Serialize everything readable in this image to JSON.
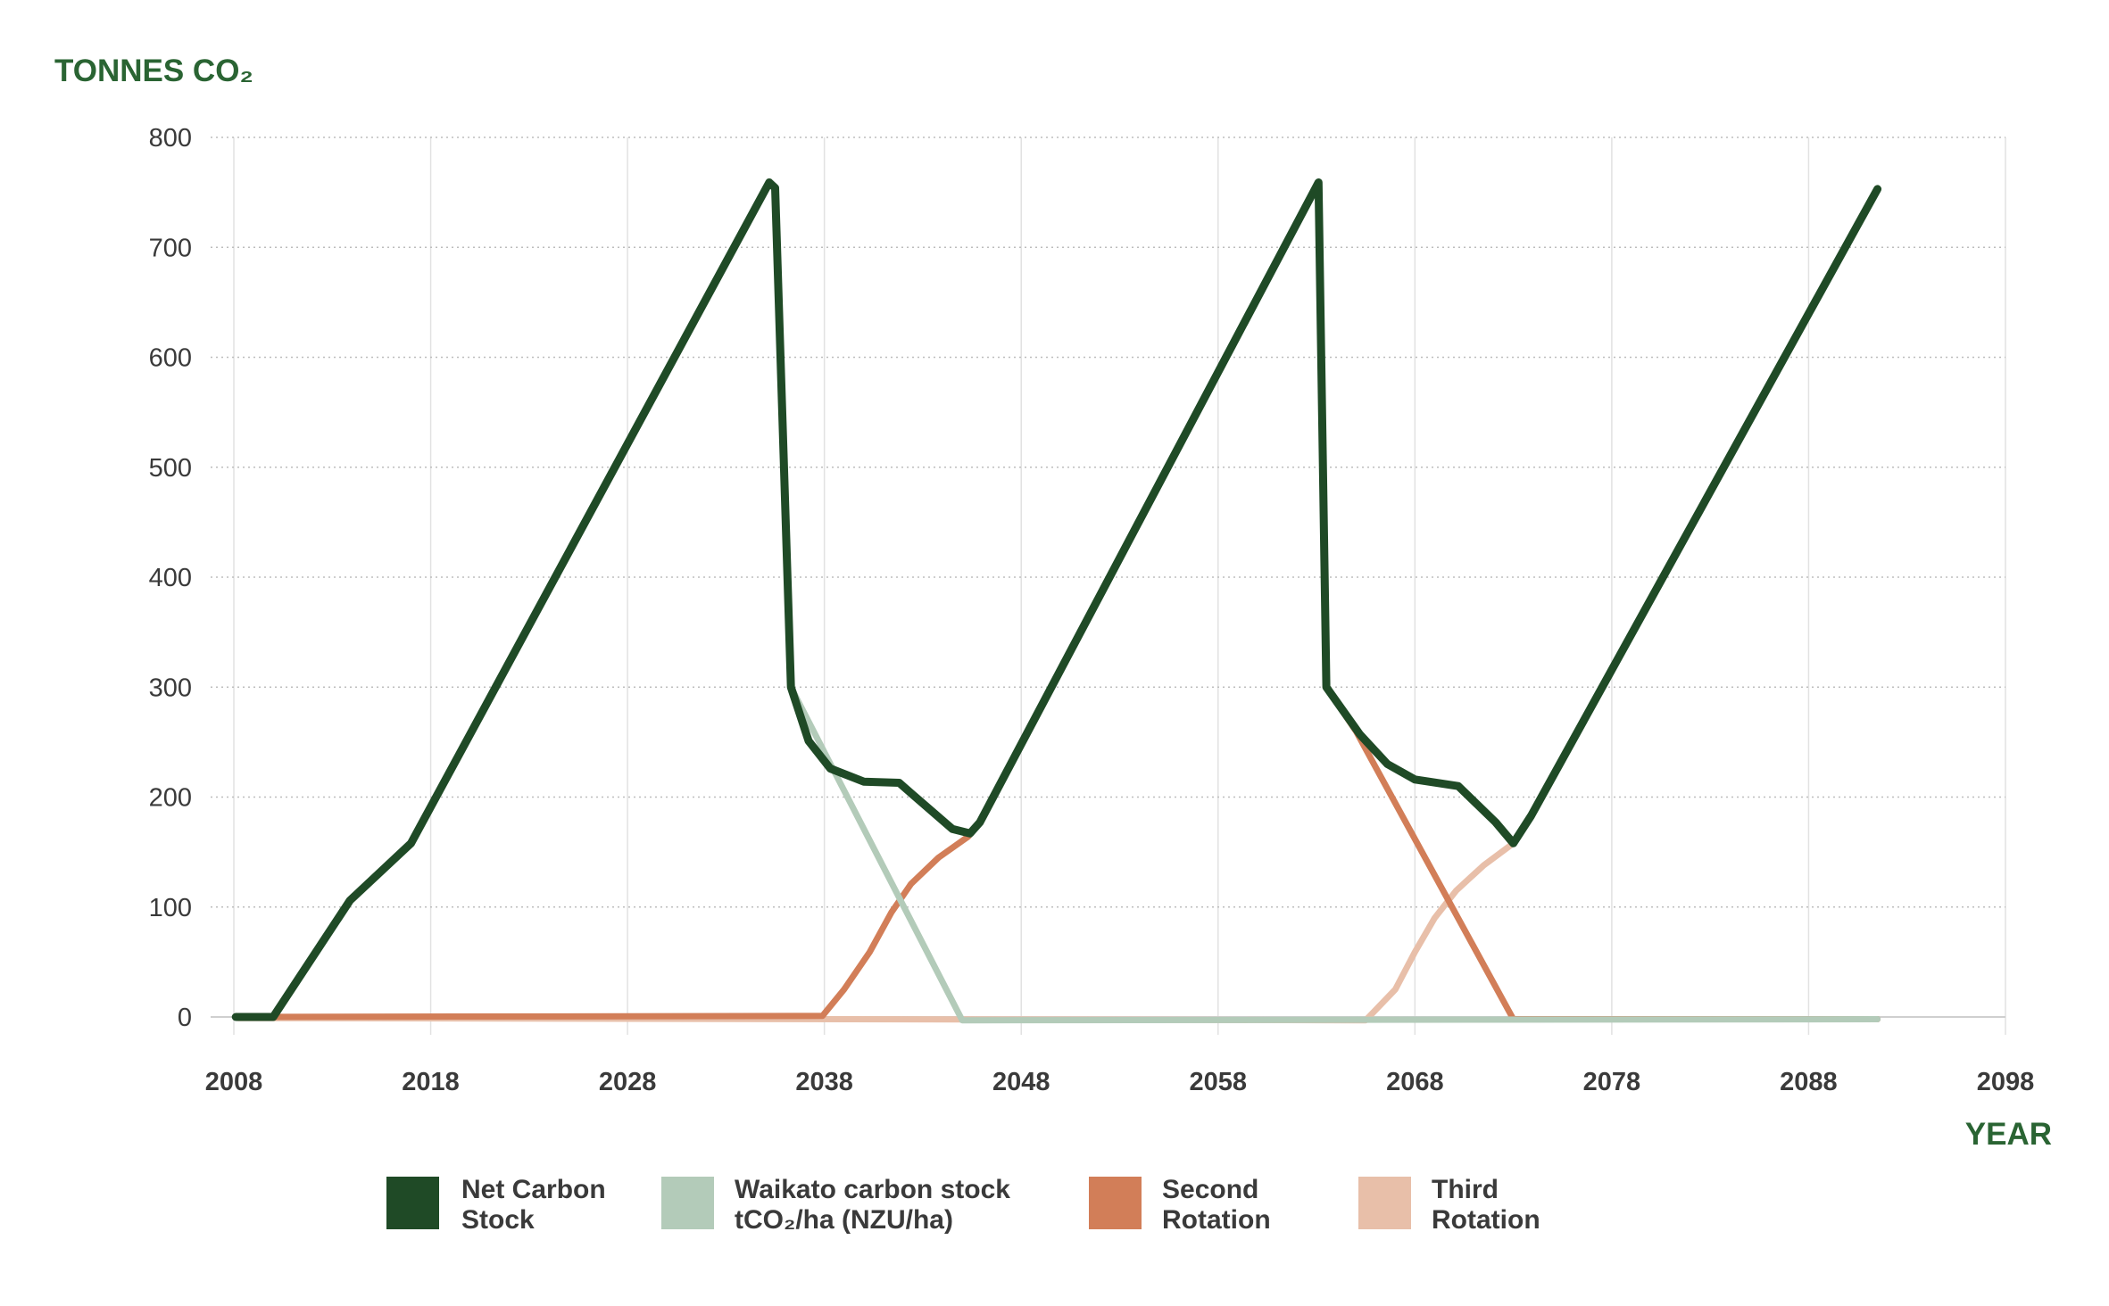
{
  "chart_data": {
    "type": "line",
    "title": "",
    "ylabel": "TONNES CO₂",
    "xlabel": "YEAR",
    "xlim": [
      2008,
      2098
    ],
    "ylim": [
      0,
      800
    ],
    "x_ticks": [
      "2008",
      "2018",
      "2028",
      "2038",
      "2048",
      "2058",
      "2068",
      "2078",
      "2088",
      "2098"
    ],
    "y_ticks": [
      "0",
      "100",
      "200",
      "300",
      "400",
      "500",
      "600",
      "700",
      "800"
    ],
    "grid": true,
    "legend_position": "bottom",
    "series": [
      {
        "name": "Third Rotation",
        "legend_lines": [
          "Third",
          "Rotation"
        ],
        "color": "#e8bfa9",
        "points": [
          [
            2008.2,
            -1
          ],
          [
            2065.5,
            -3
          ],
          [
            2067,
            25
          ],
          [
            2068,
            59
          ],
          [
            2069,
            90
          ],
          [
            2070.1,
            115
          ],
          [
            2071.5,
            138
          ],
          [
            2073,
            158
          ],
          [
            2073.9,
            183
          ],
          [
            2091.5,
            753
          ]
        ]
      },
      {
        "name": "Second Rotation",
        "legend_lines": [
          "Second",
          "Rotation"
        ],
        "color": "#d27e58",
        "points": [
          [
            2008.2,
            0
          ],
          [
            2037.9,
            1
          ],
          [
            2039,
            25
          ],
          [
            2040.3,
            59
          ],
          [
            2041.4,
            95
          ],
          [
            2042.4,
            121
          ],
          [
            2043.8,
            145
          ],
          [
            2045.3,
            164
          ],
          [
            2045.9,
            177
          ],
          [
            2063.1,
            759
          ],
          [
            2063.5,
            300
          ],
          [
            2065,
            260
          ],
          [
            2073,
            -2
          ],
          [
            2091.5,
            -2
          ]
        ]
      },
      {
        "name": "Waikato carbon stock tCO₂/ha (NZU/ha)",
        "legend_lines": [
          "Waikato carbon stock",
          "tCO₂/ha (NZU/ha)"
        ],
        "color": "#b3cbb9",
        "points": [
          [
            2008.1,
            0
          ],
          [
            2010,
            0
          ],
          [
            2013.9,
            106
          ],
          [
            2017,
            158
          ],
          [
            2035.2,
            759
          ],
          [
            2035.5,
            754
          ],
          [
            2036.3,
            300
          ],
          [
            2045,
            -3
          ],
          [
            2091.5,
            -2
          ]
        ]
      },
      {
        "name": "Net Carbon Stock",
        "legend_lines": [
          "Net Carbon",
          "Stock"
        ],
        "color": "#1f4a26",
        "points": [
          [
            2008.1,
            0
          ],
          [
            2010,
            0
          ],
          [
            2013.9,
            106
          ],
          [
            2017,
            158
          ],
          [
            2035.2,
            759
          ],
          [
            2035.5,
            754
          ],
          [
            2036.3,
            300
          ],
          [
            2037.2,
            251
          ],
          [
            2038.3,
            226
          ],
          [
            2040,
            214
          ],
          [
            2041.8,
            213
          ],
          [
            2042.5,
            202
          ],
          [
            2044.5,
            171
          ],
          [
            2045.4,
            167
          ],
          [
            2045.9,
            177
          ],
          [
            2063.1,
            759
          ],
          [
            2063.5,
            300
          ],
          [
            2065.2,
            257
          ],
          [
            2066.6,
            230
          ],
          [
            2068,
            216
          ],
          [
            2070.2,
            210
          ],
          [
            2072.1,
            177
          ],
          [
            2073,
            158
          ],
          [
            2073.9,
            183
          ],
          [
            2091.5,
            753
          ]
        ]
      }
    ]
  }
}
